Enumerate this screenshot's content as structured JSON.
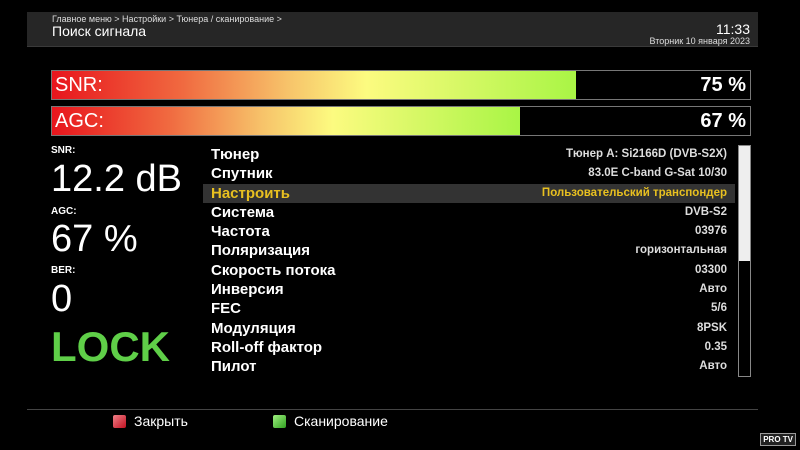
{
  "header": {
    "breadcrumb": "Главное меню > Настройки > Тюнера / сканирование >",
    "title": "Поиск сигнала",
    "time": "11:33",
    "date": "Вторник 10 января 2023"
  },
  "bars": [
    {
      "label": "SNR:",
      "value_text": "75 %",
      "percent": 75
    },
    {
      "label": "AGC:",
      "value_text": "67 %",
      "percent": 67
    }
  ],
  "side": {
    "snr_label": "SNR:",
    "snr_value": "12.2 dB",
    "agc_label": "AGC:",
    "agc_value": "67 %",
    "ber_label": "BER:",
    "ber_value": "0",
    "status": "LOCK",
    "status_color": "#5fcf48"
  },
  "list": [
    {
      "key": "Тюнер",
      "value": "Тюнер A: Si2166D (DVB-S2X)"
    },
    {
      "key": "Спутник",
      "value": "83.0E C-band G-Sat 10/30"
    },
    {
      "key": "Настроить",
      "value": "Пользовательский транспондер",
      "selected": true
    },
    {
      "key": "Система",
      "value": "DVB-S2"
    },
    {
      "key": "Частота",
      "value": "03976"
    },
    {
      "key": "Поляризация",
      "value": "горизонтальная"
    },
    {
      "key": "Скорость потока",
      "value": "03300"
    },
    {
      "key": "Инверсия",
      "value": "Авто"
    },
    {
      "key": "FEC",
      "value": "5/6"
    },
    {
      "key": "Модуляция",
      "value": "8PSK"
    },
    {
      "key": "Roll-off фактор",
      "value": "0.35"
    },
    {
      "key": "Пилот",
      "value": "Авто"
    }
  ],
  "footer": {
    "red_label": "Закрыть",
    "green_label": "Сканирование",
    "red_color": "#d0202a",
    "green_color": "#4cc632",
    "logo": "PRO TV"
  },
  "colors": {
    "highlight": "#e8c020"
  }
}
